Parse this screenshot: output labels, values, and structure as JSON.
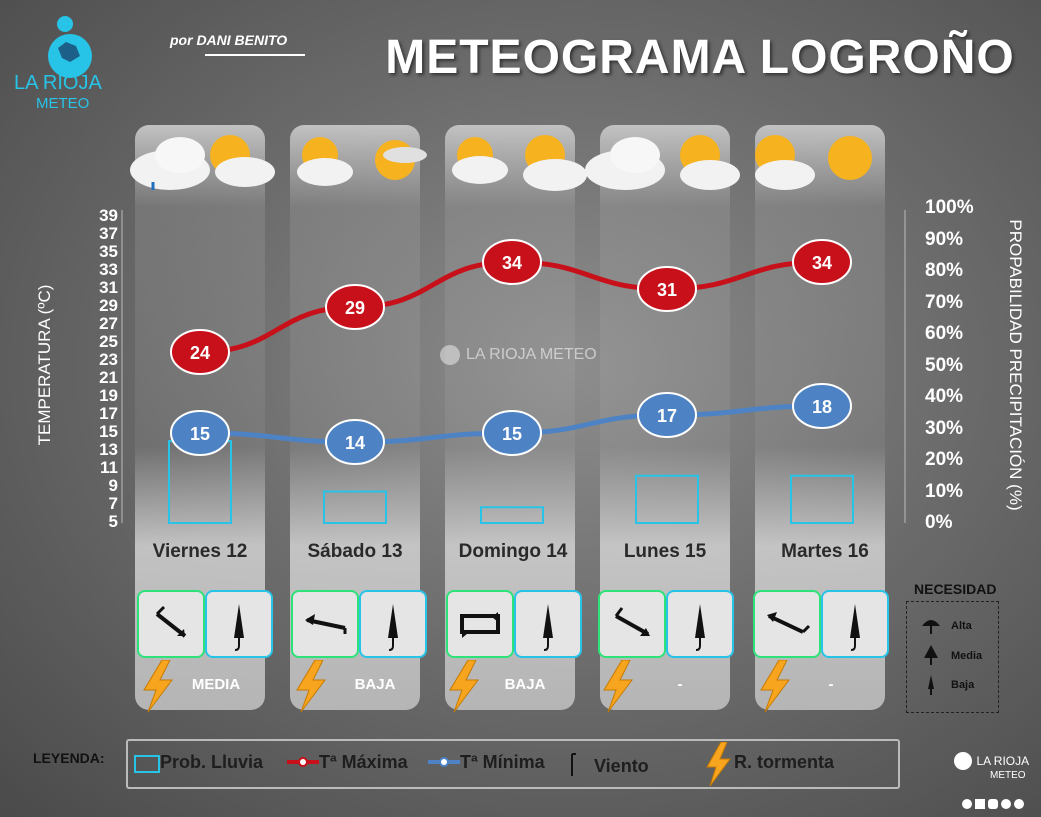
{
  "header": {
    "title": "METEOGRAMA LOGROÑO",
    "author": "por DANI BENITO"
  },
  "logo": {
    "name": "LA RIOJA",
    "sub": "METEO"
  },
  "watermark": "LA RIOJA METEO",
  "axes": {
    "left_label": "TEMPERATURA (ºC)",
    "right_label": "PROPABILIDAD PRECIPITACIÓN (%)",
    "left_ticks": [
      "39",
      "37",
      "35",
      "33",
      "31",
      "29",
      "27",
      "25",
      "23",
      "21",
      "19",
      "17",
      "15",
      "13",
      "11",
      "9",
      "7",
      "5"
    ],
    "right_ticks": [
      "100%",
      "90%",
      "80%",
      "70%",
      "60%",
      "50%",
      "40%",
      "30%",
      "20%",
      "10%",
      "0%"
    ]
  },
  "chart_data": {
    "type": "line",
    "categories": [
      "Viernes 12",
      "Sábado 13",
      "Domingo 14",
      "Lunes 15",
      "Martes 16"
    ],
    "series": [
      {
        "name": "Tª Máxima",
        "values": [
          24,
          29,
          34,
          31,
          34
        ],
        "color": "#c8101a"
      },
      {
        "name": "Tª Mínima",
        "values": [
          15,
          14,
          15,
          17,
          18
        ],
        "color": "#4d83c4"
      },
      {
        "name": "Prob. Lluvia",
        "type": "bar",
        "values": [
          26,
          10,
          5,
          15,
          15
        ],
        "unit": "%",
        "color": "#27c4e8"
      }
    ],
    "ylim": [
      5,
      39
    ],
    "y2lim": [
      0,
      100
    ]
  },
  "days": [
    {
      "label": "Viernes 12",
      "wind": "NW",
      "need": "MEDIA",
      "storm": true
    },
    {
      "label": "Sábado 13",
      "wind": "W",
      "need": "BAJA",
      "storm": true
    },
    {
      "label": "Domingo 14",
      "wind": "variable",
      "need": "BAJA",
      "storm": true
    },
    {
      "label": "Lunes 15",
      "wind": "NW",
      "need": "-",
      "storm": true
    },
    {
      "label": "Martes 16",
      "wind": "NW",
      "need": "-",
      "storm": true
    }
  ],
  "necesidad": {
    "title": "NECESIDAD",
    "items": [
      "Alta",
      "Media",
      "Baja"
    ]
  },
  "legend": {
    "title": "LEYENDA:",
    "items": [
      "Prob. Lluvia",
      "Tª Máxima",
      "Tª Mínima",
      "Viento",
      "R. tormenta"
    ]
  },
  "footer_logo": {
    "name": "LA RIOJA",
    "sub": "METEO"
  }
}
